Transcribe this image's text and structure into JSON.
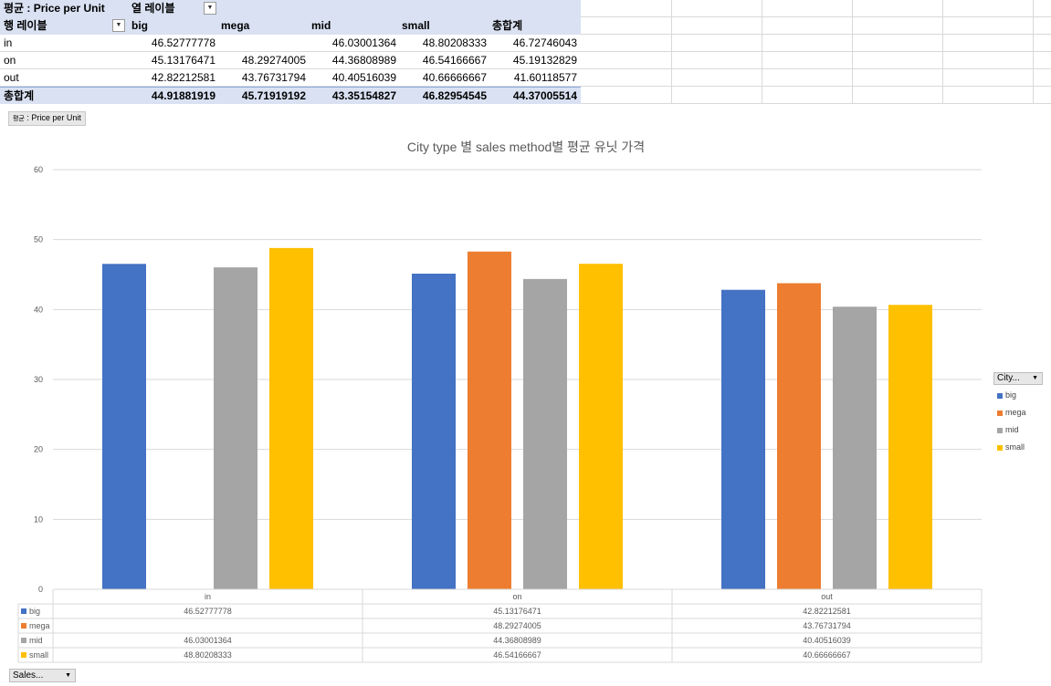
{
  "pivot": {
    "value_field": "평균 : Price per Unit",
    "col_label_header": "열 레이블",
    "row_label_header": "행 레이블",
    "columns": [
      "big",
      "mega",
      "mid",
      "small",
      "총합계"
    ],
    "rows": [
      {
        "label": "in",
        "values": [
          "46.52777778",
          "",
          "46.03001364",
          "48.80208333",
          "46.72746043"
        ]
      },
      {
        "label": "on",
        "values": [
          "45.13176471",
          "48.29274005",
          "44.36808989",
          "46.54166667",
          "45.19132829"
        ]
      },
      {
        "label": "out",
        "values": [
          "42.82212581",
          "43.76731794",
          "40.40516039",
          "40.66666667",
          "41.60118577"
        ]
      }
    ],
    "total_row": {
      "label": "총합계",
      "values": [
        "44.91881919",
        "45.71919192",
        "43.35154827",
        "46.82954545",
        "44.37005514"
      ]
    }
  },
  "value_field_button": {
    "prefix": "평균",
    "label": ": Price per Unit"
  },
  "legend_button": {
    "label": "City..."
  },
  "axis_field_button": {
    "label": "Sales..."
  },
  "colors": {
    "big": "#4472c4",
    "mega": "#ed7d31",
    "mid": "#a5a5a5",
    "small": "#ffc000"
  },
  "chart_data": {
    "type": "bar",
    "title": "City type 별 sales method별 평균 유닛 가격",
    "categories": [
      "in",
      "on",
      "out"
    ],
    "series": [
      {
        "name": "big",
        "values": [
          46.52777778,
          45.13176471,
          42.82212581
        ],
        "labels": [
          "46.52777778",
          "45.13176471",
          "42.82212581"
        ]
      },
      {
        "name": "mega",
        "values": [
          null,
          48.29274005,
          43.76731794
        ],
        "labels": [
          "",
          "48.29274005",
          "43.76731794"
        ]
      },
      {
        "name": "mid",
        "values": [
          46.03001364,
          44.36808989,
          40.40516039
        ],
        "labels": [
          "46.03001364",
          "44.36808989",
          "40.40516039"
        ]
      },
      {
        "name": "small",
        "values": [
          48.80208333,
          46.54166667,
          40.66666667
        ],
        "labels": [
          "48.80208333",
          "46.54166667",
          "40.66666667"
        ]
      }
    ],
    "yticks": [
      "0",
      "10",
      "20",
      "30",
      "40",
      "50",
      "60"
    ],
    "ylim": [
      0,
      60
    ],
    "grid": true,
    "legend": "right",
    "data_table": true
  }
}
